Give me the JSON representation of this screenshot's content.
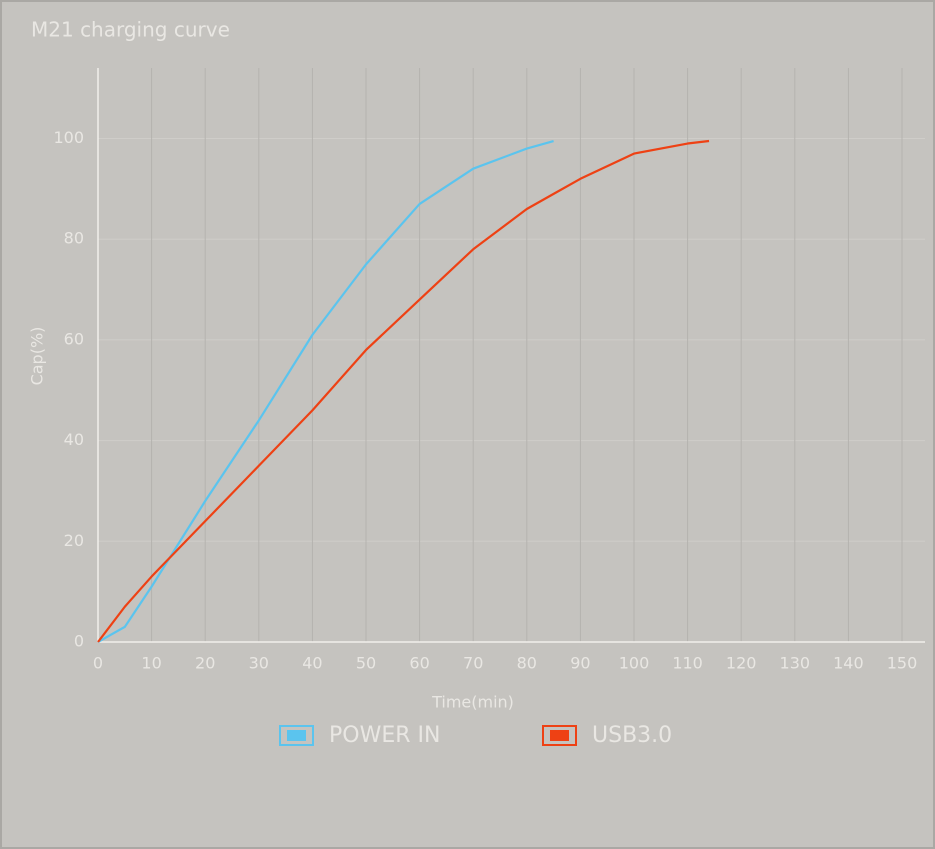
{
  "chart_data": {
    "type": "line",
    "title": "M21 charging curve",
    "x_label": "Time(min)",
    "y_label": "Cap(%)",
    "x": [
      0,
      5,
      10,
      20,
      30,
      40,
      50,
      60,
      70,
      80,
      85,
      90,
      100,
      110,
      114
    ],
    "series": [
      {
        "name": "POWER IN",
        "color": "#5bc4ee",
        "values": [
          0,
          3,
          11,
          28,
          44,
          61,
          75,
          87,
          94,
          98,
          99.5,
          null,
          null,
          null,
          null
        ]
      },
      {
        "name": "USB3.0",
        "color": "#ee4114",
        "values": [
          0,
          7,
          13,
          24,
          35,
          46,
          58,
          68,
          78,
          86,
          89,
          92,
          97,
          99,
          99.5
        ]
      }
    ],
    "xlim": [
      0,
      150
    ],
    "xticks": [
      0,
      10,
      20,
      30,
      40,
      50,
      60,
      70,
      80,
      90,
      100,
      110,
      120,
      130,
      140,
      150
    ],
    "ylim": [
      0,
      114
    ],
    "yticks": [
      0,
      20,
      40,
      60,
      80,
      100
    ],
    "grid": true
  }
}
